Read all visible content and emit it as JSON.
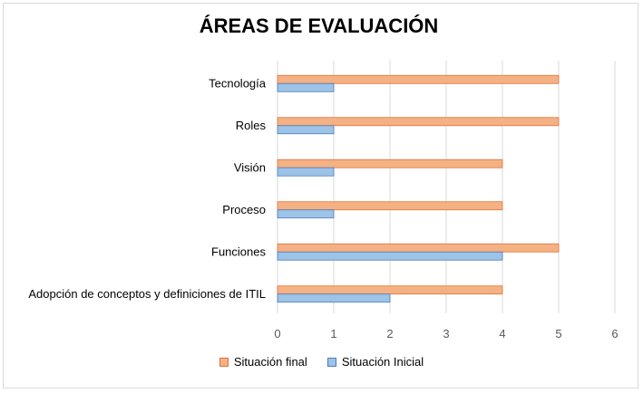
{
  "chart_data": {
    "type": "bar",
    "orientation": "horizontal",
    "title": "ÁREAS DE EVALUACIÓN",
    "categories": [
      "Tecnología",
      "Roles",
      "Visión",
      "Proceso",
      "Funciones",
      "Adopción de conceptos y definiciones de ITIL"
    ],
    "series": [
      {
        "name": "Situación final",
        "values": [
          5,
          5,
          4,
          4,
          5,
          4
        ],
        "color": "#f4b183",
        "stroke": "#e0743a"
      },
      {
        "name": "Situación Inicial",
        "values": [
          1,
          1,
          1,
          1,
          4,
          2
        ],
        "color": "#9dc3e6",
        "stroke": "#4a7ebb"
      }
    ],
    "xlim": [
      0,
      6
    ],
    "ticks": [
      "0",
      "1",
      "2",
      "3",
      "4",
      "5",
      "6"
    ],
    "grid": true,
    "legend_position": "bottom"
  }
}
